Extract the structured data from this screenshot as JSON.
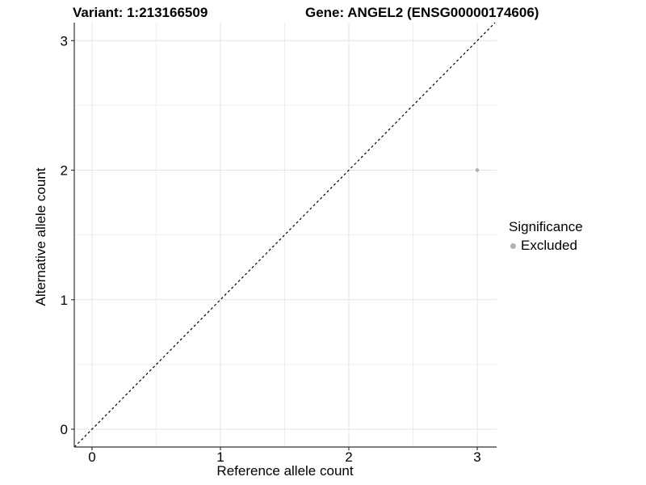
{
  "chart_data": {
    "type": "scatter",
    "title_left": "Variant: 1:213166509",
    "title_right": "Gene: ANGEL2 (ENSG00000174606)",
    "xlabel": "Reference allele count",
    "ylabel": "Alternative allele count",
    "xlim": [
      -0.138,
      3.151
    ],
    "ylim": [
      -0.137,
      3.139
    ],
    "x_major_ticks": [
      0,
      1,
      2,
      3
    ],
    "y_major_ticks": [
      0,
      1,
      2,
      3
    ],
    "x_minor_ticks": [
      0.5,
      1.5,
      2.5
    ],
    "y_minor_ticks": [
      0.5,
      1.5,
      2.5
    ],
    "grid": true,
    "reference_line": {
      "kind": "identity",
      "style": "dashed",
      "color": "#000000"
    },
    "series": [
      {
        "name": "Excluded",
        "color": "#b0b0b0",
        "points": [
          {
            "x": 3,
            "y": 2
          }
        ]
      }
    ],
    "legend": {
      "title": "Significance",
      "position": "right",
      "items": [
        {
          "label": "Excluded",
          "color": "#b0b0b0"
        }
      ]
    },
    "colors": {
      "background": "#ffffff",
      "grid_major": "#e4e4e4",
      "grid_minor": "#f0f0f0",
      "axis": "#333333",
      "text": "#000000",
      "point": "#b0b0b0"
    }
  }
}
